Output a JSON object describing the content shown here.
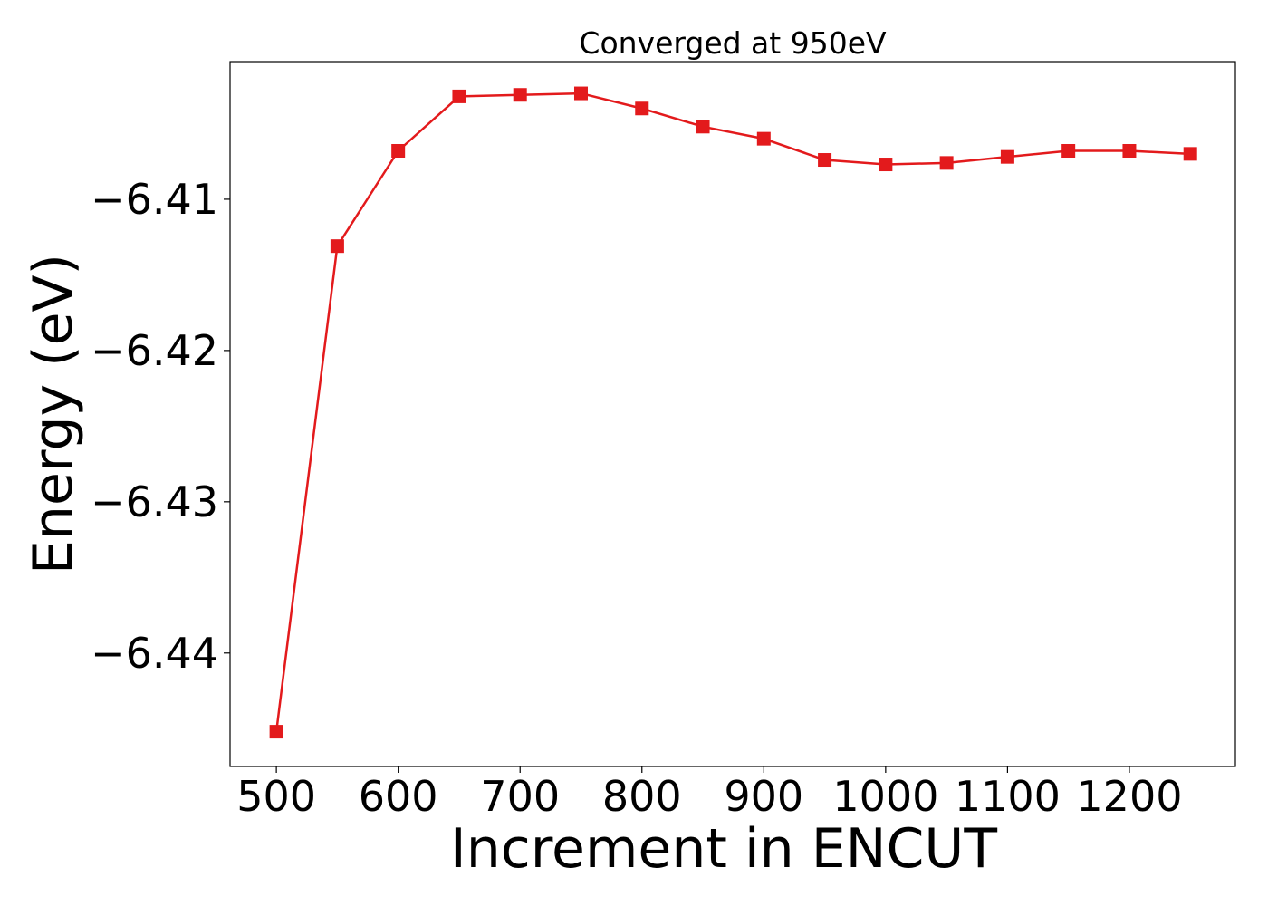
{
  "chart_data": {
    "type": "line",
    "title": "Converged at 950eV",
    "xlabel": "Increment in ENCUT",
    "ylabel": "Energy (eV)",
    "xlim": [
      462,
      1287
    ],
    "ylim": [
      -6.4475,
      -6.4009
    ],
    "x_ticks": [
      500,
      600,
      700,
      800,
      900,
      1000,
      1100,
      1200
    ],
    "x_tick_labels": [
      "500",
      "600",
      "700",
      "800",
      "900",
      "1000",
      "1100",
      "1200"
    ],
    "y_ticks": [
      -6.44,
      -6.43,
      -6.42,
      -6.41
    ],
    "y_tick_labels": [
      "−6.44",
      "−6.43",
      "−6.42",
      "−6.41"
    ],
    "grid": false,
    "series": [
      {
        "color": "#e31a1c",
        "marker": "square",
        "x": [
          500,
          550,
          600,
          650,
          700,
          750,
          800,
          850,
          900,
          950,
          1000,
          1050,
          1100,
          1150,
          1200,
          1250
        ],
        "y": [
          -6.4452,
          -6.4131,
          -6.4068,
          -6.4032,
          -6.4031,
          -6.403,
          -6.404,
          -6.4052,
          -6.406,
          -6.4074,
          -6.4077,
          -6.4076,
          -6.4072,
          -6.4068,
          -6.4068,
          -6.407
        ]
      }
    ]
  }
}
